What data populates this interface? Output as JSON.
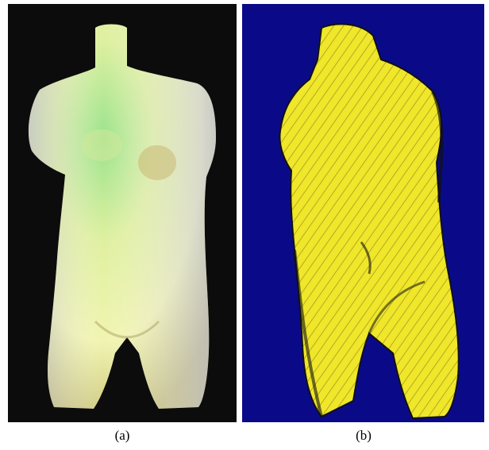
{
  "figure": {
    "panels": [
      {
        "caption": "(a)",
        "description_icon": "torso-sculpture-painterly-render",
        "background_color": "#0c0c0c",
        "palette": [
          "#f3f7a6",
          "#8ee38a",
          "#c8c8e2",
          "#d8d27a"
        ]
      },
      {
        "caption": "(b)",
        "description_icon": "torso-sculpture-hatched-render",
        "background_color": "#0a0a88",
        "palette": [
          "#f0e62a",
          "#111111"
        ]
      }
    ]
  }
}
